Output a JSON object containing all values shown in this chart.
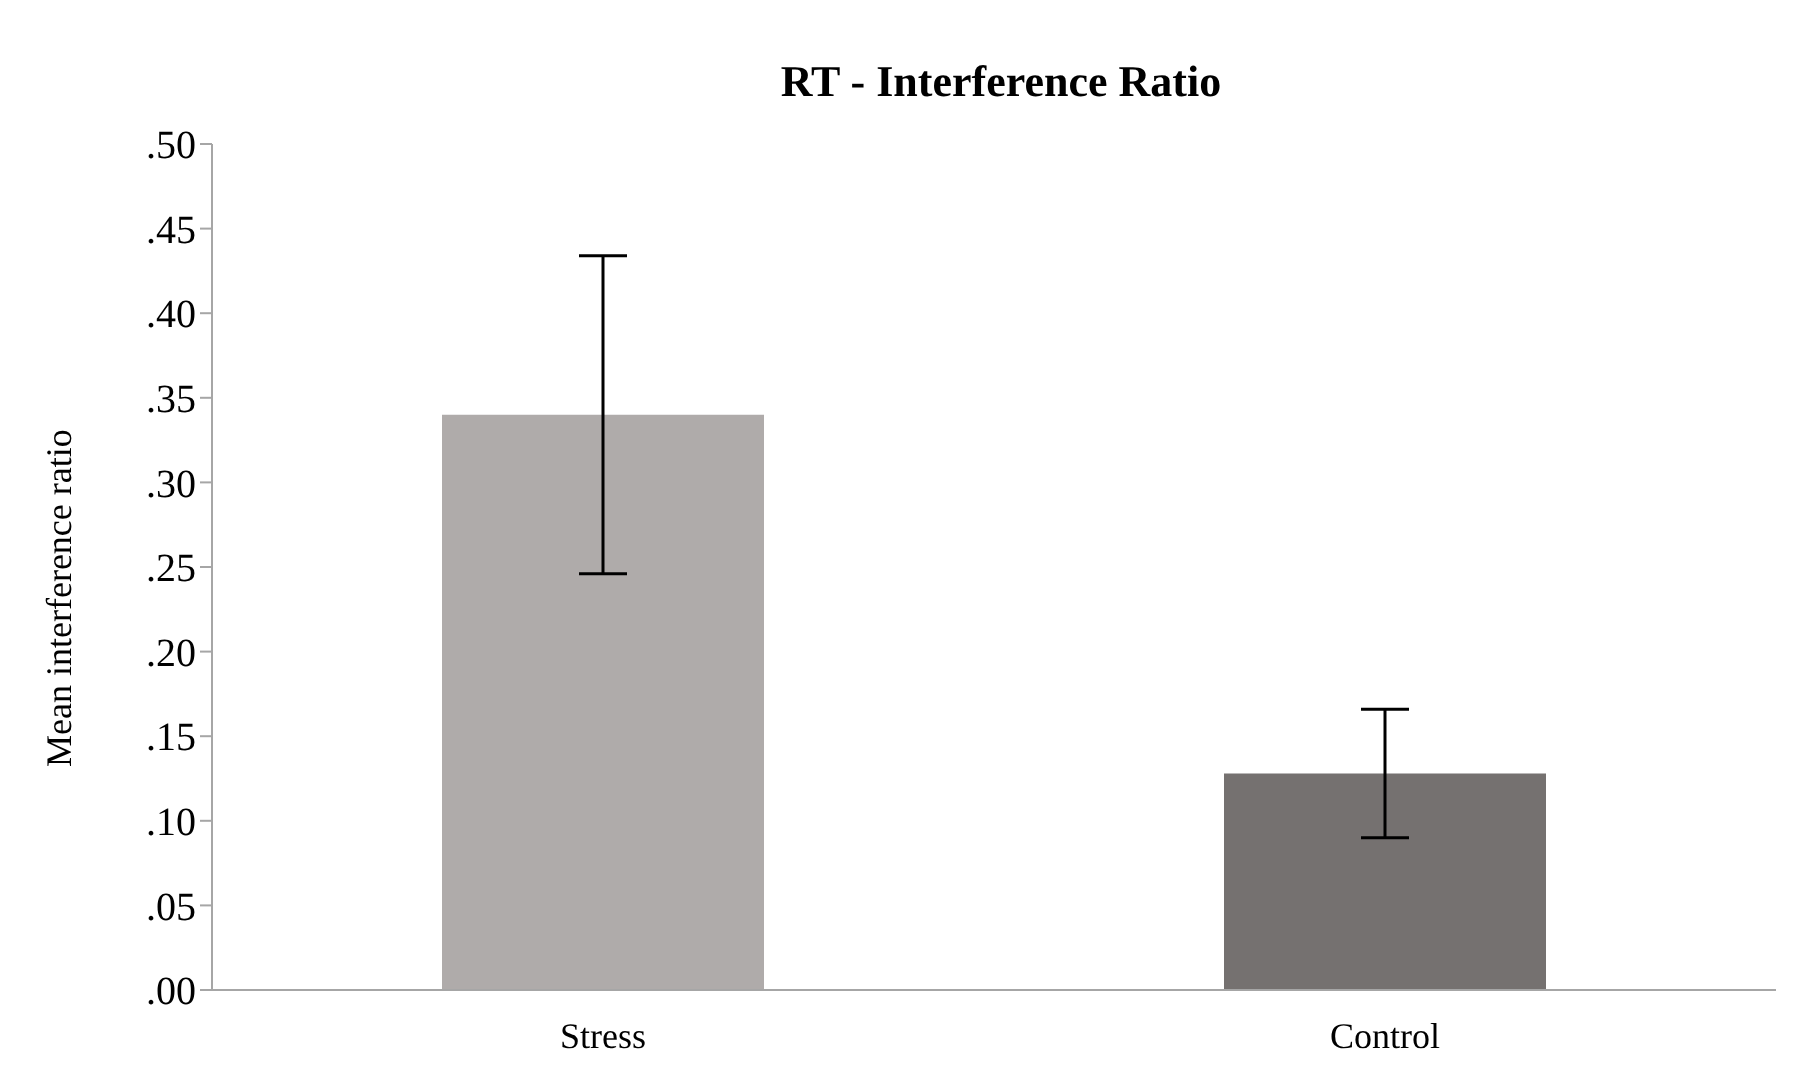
{
  "chart_data": {
    "type": "bar",
    "title": "RT - Interference Ratio",
    "ylabel": "Mean interference ratio",
    "categories": [
      "Stress",
      "Control"
    ],
    "values": [
      0.34,
      0.128
    ],
    "errors": [
      0.094,
      0.038
    ],
    "colors": [
      "#afabaa",
      "#757170"
    ],
    "ylim": [
      0,
      0.5
    ],
    "yticks": [
      {
        "value": 0,
        "label": ".00"
      },
      {
        "value": 0.05,
        "label": ".05"
      },
      {
        "value": 0.1,
        "label": ".10"
      },
      {
        "value": 0.15,
        "label": ".15"
      },
      {
        "value": 0.2,
        "label": ".20"
      },
      {
        "value": 0.25,
        "label": ".25"
      },
      {
        "value": 0.3,
        "label": ".30"
      },
      {
        "value": 0.35,
        "label": ".35"
      },
      {
        "value": 0.4,
        "label": ".40"
      },
      {
        "value": 0.45,
        "label": ".45"
      },
      {
        "value": 0.5,
        "label": ".50"
      }
    ],
    "grid": false,
    "legend": false
  }
}
